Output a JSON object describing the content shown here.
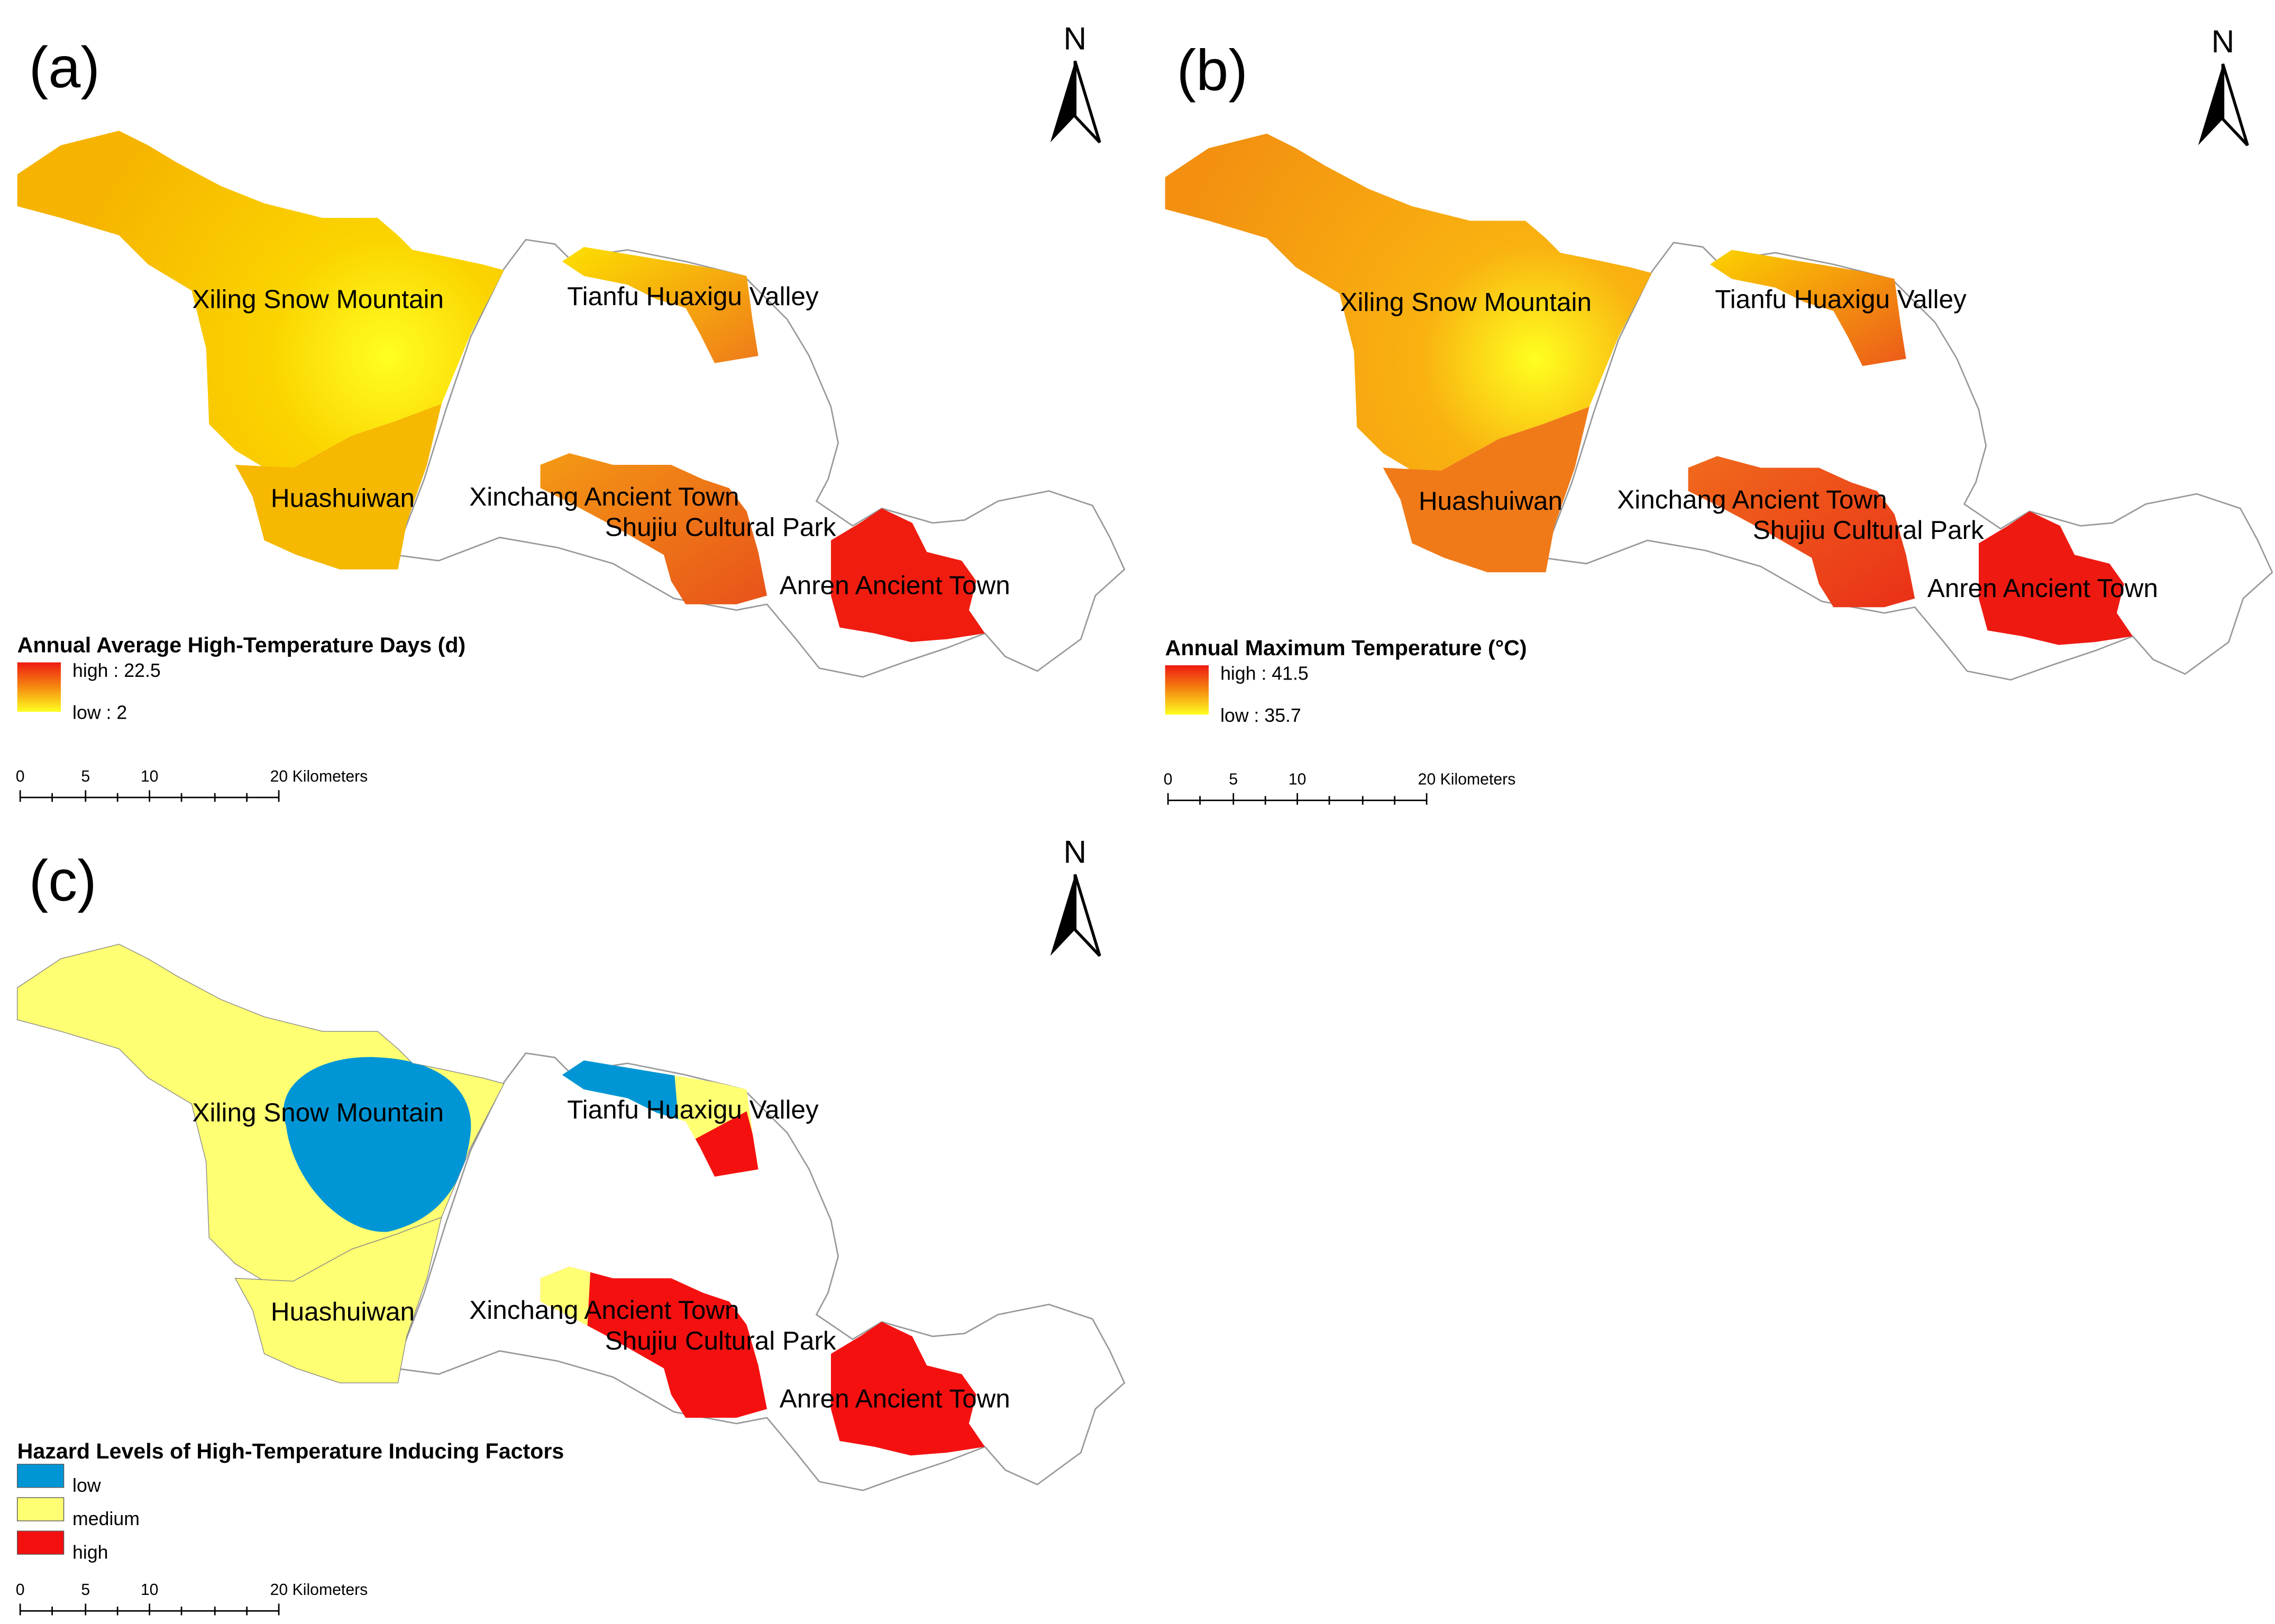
{
  "panels": [
    {
      "label": "(a)",
      "north": "N",
      "places": [
        "Xiling Snow Mountain",
        "Tianfu Huaxigu Valley",
        "Huashuiwan",
        "Xinchang Ancient Town",
        "Shujiu Cultural Park",
        "Anren Ancient Town"
      ],
      "legend": {
        "title": "Annual Average High-Temperature Days (d)",
        "items": [
          "high : 22.5",
          "low : 2"
        ]
      },
      "scale_bar": [
        "0",
        "5",
        "10",
        "20 Kilometers"
      ]
    },
    {
      "label": "(b)",
      "north": "N",
      "places": [
        "Xiling Snow Mountain",
        "Tianfu Huaxigu Valley",
        "Huashuiwan",
        "Xinchang Ancient Town",
        "Shujiu Cultural Park",
        "Anren Ancient Town"
      ],
      "legend": {
        "title": "Annual Maximum Temperature (°C)",
        "items": [
          "high : 41.5",
          "low : 35.7"
        ]
      },
      "scale_bar": [
        "0",
        "5",
        "10",
        "20 Kilometers"
      ]
    },
    {
      "label": "(c)",
      "north": "N",
      "places": [
        "Xiling Snow Mountain",
        "Tianfu Huaxigu Valley",
        "Huashuiwan",
        "Xinchang Ancient Town",
        "Shujiu Cultural Park",
        "Anren Ancient Town"
      ],
      "legend": {
        "title": "Hazard Levels of High-Temperature Inducing Factors",
        "items": [
          "low",
          "medium",
          "high"
        ]
      },
      "scale_bar": [
        "0",
        "5",
        "10",
        "20 Kilometers"
      ]
    }
  ]
}
